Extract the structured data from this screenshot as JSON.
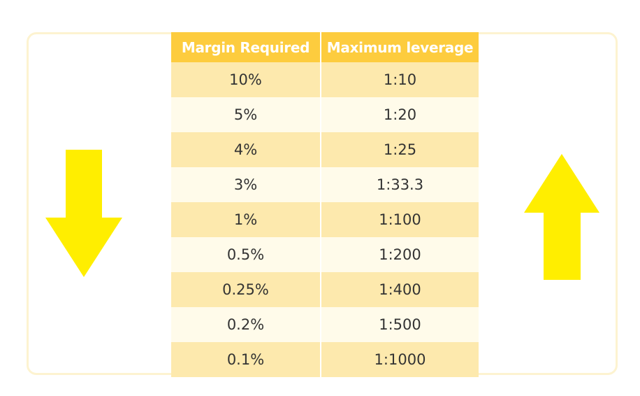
{
  "table": {
    "headers": [
      "Margin Required",
      "Maximum leverage"
    ],
    "rows": [
      [
        "10%",
        "1:10"
      ],
      [
        "5%",
        "1:20"
      ],
      [
        "4%",
        "1:25"
      ],
      [
        "3%",
        "1:33.3"
      ],
      [
        "1%",
        "1:100"
      ],
      [
        "0.5%",
        "1:200"
      ],
      [
        "0.25%",
        "1:400"
      ],
      [
        "0.2%",
        "1:500"
      ],
      [
        "0.1%",
        "1:1000"
      ]
    ]
  },
  "colors": {
    "header_bg": "#fdcc3e",
    "row_odd_bg": "#fde9ad",
    "row_even_bg": "#fffbea",
    "arrow": "#ffee00",
    "frame_border": "#fdf3d0"
  },
  "icons": {
    "left": "arrow-down-icon",
    "right": "arrow-up-icon"
  }
}
